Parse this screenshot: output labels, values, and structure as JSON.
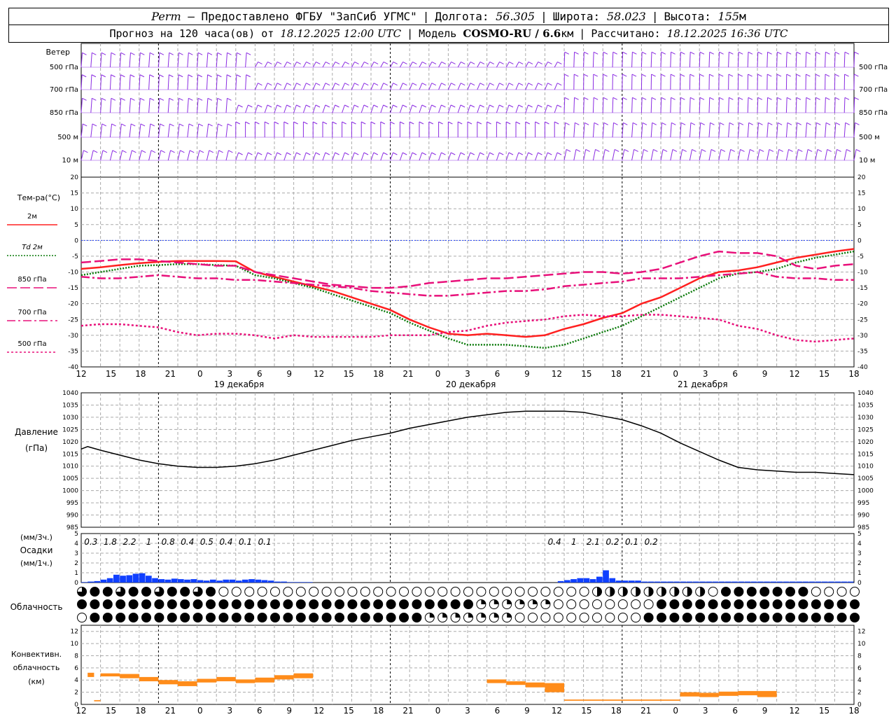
{
  "header": {
    "station": "Perm",
    "provider": "– Предоставлено ФГБУ \"ЗапСиб УГМС\"",
    "lon_label": "Долгота:",
    "lon_value": "56.305",
    "lat_label": "Широта:",
    "lat_value": "58.023",
    "alt_label": "Высота:",
    "alt_value": "155",
    "alt_unit": "м",
    "forecast_prefix": "Прогноз на 120 часа(ов) от",
    "forecast_start": "18.12.2025 12:00 UTC",
    "model_label": "Модель",
    "model_name": "COSMO-RU / 6.6",
    "model_unit": "км",
    "calc_label": "Рассчитано:",
    "calc_time": "18.12.2025 16:36 UTC"
  },
  "time_axis": {
    "hour_labels": [
      "12",
      "15",
      "18",
      "21",
      "0",
      "3",
      "6",
      "9",
      "12",
      "15",
      "18",
      "21",
      "0",
      "3",
      "6",
      "9",
      "12",
      "15",
      "18",
      "21",
      "0",
      "3",
      "6",
      "9",
      "12",
      "15",
      "18"
    ],
    "day_labels": [
      "19 декабря",
      "20 декабря",
      "21 декабря"
    ]
  },
  "wind_panel": {
    "title": "Ветер",
    "levels_left": [
      "500 гПа",
      "700 гПа",
      "850 гПа",
      "500 м",
      "10 м"
    ],
    "levels_right": [
      "500 гПа",
      "700 гПа",
      "850 гПа",
      "500 м",
      "10 м"
    ],
    "barb_color": "#8a2be2"
  },
  "temp_panel": {
    "title": "Тем-ра(°C)",
    "legend": [
      {
        "label": "2м",
        "color": "#ff2020",
        "style": "solid"
      },
      {
        "label": "Td  2м",
        "color": "#0a7a0a",
        "style": "dotted"
      },
      {
        "label": "850 гПа",
        "color": "#e8107a",
        "style": "longdash"
      },
      {
        "label": "700 гПа",
        "color": "#e8107a",
        "style": "dashdot"
      },
      {
        "label": "500 гПа",
        "color": "#e8107a",
        "style": "dot"
      }
    ],
    "y_ticks": [
      "20",
      "15",
      "10",
      "5",
      "0",
      "-5",
      "-10",
      "-15",
      "-20",
      "-25",
      "-30",
      "-35",
      "-40"
    ]
  },
  "pressure_panel": {
    "title": "Давление",
    "unit": "(гПа)",
    "y_ticks": [
      "1040",
      "1035",
      "1030",
      "1025",
      "1020",
      "1015",
      "1010",
      "1005",
      "1000",
      "995",
      "990",
      "985"
    ]
  },
  "precip_panel": {
    "unit_3h": "(мм/3ч.)",
    "title": "Осадки",
    "unit_1h": "(мм/1ч.)",
    "y_ticks": [
      "5",
      "4",
      "3",
      "2",
      "1",
      "0"
    ],
    "amounts_3h": [
      {
        "text": "0.3",
        "hour": 3
      },
      {
        "text": "1.8",
        "hour": 6
      },
      {
        "text": "2.2",
        "hour": 9
      },
      {
        "text": "1",
        "hour": 12
      },
      {
        "text": "0.8",
        "hour": 15
      },
      {
        "text": "0.4",
        "hour": 18
      },
      {
        "text": "0.5",
        "hour": 21
      },
      {
        "text": "0.4",
        "hour": 24
      },
      {
        "text": "0.1",
        "hour": 27
      },
      {
        "text": "0.1",
        "hour": 30
      },
      {
        "text": "0.4",
        "hour": 75
      },
      {
        "text": "1",
        "hour": 78
      },
      {
        "text": "2.1",
        "hour": 81
      },
      {
        "text": "0.2",
        "hour": 84
      },
      {
        "text": "0.1",
        "hour": 87
      },
      {
        "text": "0.2",
        "hour": 90
      }
    ],
    "bar_color": "#1040ff"
  },
  "cloud_panel": {
    "title": "Облачность"
  },
  "convective_panel": {
    "title_1": "Конвективн.",
    "title_2": "облачность",
    "unit": "(км)",
    "y_ticks": [
      "12",
      "10",
      "8",
      "6",
      "4",
      "2",
      "0"
    ],
    "bar_color": "#ff8c1a"
  },
  "chart_data": [
    {
      "type": "line",
      "title": "Тем-ра(°C)",
      "x_unit": "hours from 18.12.2025 12:00 UTC",
      "ylim": [
        -40,
        20
      ],
      "series": [
        {
          "name": "2м",
          "x": [
            0,
            3,
            6,
            9,
            12,
            15,
            18,
            21,
            24,
            27,
            30,
            33,
            36,
            39,
            42,
            45,
            48,
            51,
            54,
            57,
            60,
            63,
            66,
            69,
            72,
            75,
            78,
            81,
            84,
            87,
            90,
            93,
            96,
            99,
            102,
            105,
            108,
            111,
            114,
            117,
            120
          ],
          "values": [
            -9,
            -8.5,
            -7.8,
            -7.2,
            -6.8,
            -6.5,
            -6.5,
            -6.5,
            -6.6,
            -10,
            -11.5,
            -13,
            -14.5,
            -16,
            -18,
            -20,
            -22,
            -25,
            -27.5,
            -29.5,
            -30,
            -29.5,
            -30,
            -30.5,
            -30,
            -28,
            -26.5,
            -24.5,
            -23,
            -20,
            -18,
            -15,
            -12,
            -10,
            -9.5,
            -8.5,
            -7,
            -5.5,
            -4.5,
            -3.5,
            -2.7
          ]
        },
        {
          "name": "Td  2м",
          "x": [
            0,
            3,
            6,
            9,
            12,
            15,
            18,
            21,
            24,
            27,
            30,
            33,
            36,
            39,
            42,
            45,
            48,
            51,
            54,
            57,
            60,
            63,
            66,
            69,
            72,
            75,
            78,
            81,
            84,
            87,
            90,
            93,
            96,
            99,
            102,
            105,
            108,
            111,
            114,
            117,
            120
          ],
          "values": [
            -11,
            -10,
            -9,
            -8,
            -7.8,
            -7.5,
            -7.5,
            -7.8,
            -8,
            -11,
            -12,
            -13.5,
            -15,
            -17,
            -19,
            -21,
            -23,
            -26,
            -28.5,
            -31,
            -33,
            -33,
            -33,
            -33.5,
            -34,
            -33,
            -31,
            -29,
            -27,
            -24,
            -21,
            -18,
            -15,
            -12,
            -10.5,
            -10,
            -9,
            -7,
            -5.5,
            -4.5,
            -3.5
          ]
        },
        {
          "name": "850 гПа",
          "x": [
            0,
            3,
            6,
            9,
            12,
            15,
            18,
            21,
            24,
            27,
            30,
            33,
            36,
            39,
            42,
            45,
            48,
            51,
            54,
            57,
            60,
            63,
            66,
            69,
            72,
            75,
            78,
            81,
            84,
            87,
            90,
            93,
            96,
            99,
            102,
            105,
            108,
            111,
            114,
            117,
            120
          ],
          "values": [
            -7,
            -6.5,
            -6,
            -6,
            -6.5,
            -7,
            -7.5,
            -8,
            -8,
            -10,
            -11,
            -12,
            -13,
            -14,
            -14.5,
            -15,
            -15,
            -14.5,
            -13.5,
            -13,
            -12.5,
            -12,
            -12,
            -11.5,
            -11,
            -10.5,
            -10,
            -10,
            -10.5,
            -10,
            -9,
            -7,
            -5,
            -3.5,
            -4,
            -4,
            -5,
            -8,
            -9,
            -8,
            -7.5
          ]
        },
        {
          "name": "700 гПа",
          "x": [
            0,
            3,
            6,
            9,
            12,
            15,
            18,
            21,
            24,
            27,
            30,
            33,
            36,
            39,
            42,
            45,
            48,
            51,
            54,
            57,
            60,
            63,
            66,
            69,
            72,
            75,
            78,
            81,
            84,
            87,
            90,
            93,
            96,
            99,
            102,
            105,
            108,
            111,
            114,
            117,
            120
          ],
          "values": [
            -11.5,
            -12,
            -12,
            -11.5,
            -11,
            -11.5,
            -12,
            -12,
            -12.5,
            -12.5,
            -13,
            -13.5,
            -14,
            -14.5,
            -15,
            -16,
            -16.5,
            -17,
            -17.5,
            -17.5,
            -17,
            -16.5,
            -16,
            -16,
            -15.5,
            -14.5,
            -14,
            -13.5,
            -13,
            -12,
            -12,
            -12,
            -11.5,
            -11,
            -10.5,
            -10,
            -11.5,
            -12,
            -12,
            -12.5,
            -12.5
          ]
        },
        {
          "name": "500 гПа",
          "x": [
            0,
            3,
            6,
            9,
            12,
            15,
            18,
            21,
            24,
            27,
            30,
            33,
            36,
            39,
            42,
            45,
            48,
            51,
            54,
            57,
            60,
            63,
            66,
            69,
            72,
            75,
            78,
            81,
            84,
            87,
            90,
            93,
            96,
            99,
            102,
            105,
            108,
            111,
            114,
            117,
            120
          ],
          "values": [
            -27,
            -26.5,
            -26.5,
            -27,
            -27.5,
            -29,
            -30,
            -29.5,
            -29.5,
            -30,
            -31,
            -30,
            -30.5,
            -30.5,
            -30.5,
            -30.5,
            -30,
            -30,
            -30,
            -29,
            -28.5,
            -27,
            -26,
            -25.5,
            -25,
            -24,
            -23.5,
            -24,
            -24,
            -23.5,
            -23.5,
            -24,
            -24.5,
            -25,
            -27,
            -28,
            -30,
            -31.5,
            -32,
            -31.5,
            -31
          ]
        }
      ]
    },
    {
      "type": "line",
      "title": "Давление",
      "ylabel": "(гПа)",
      "x_unit": "hours from 18.12.2025 12:00 UTC",
      "ylim": [
        985,
        1040
      ],
      "series": [
        {
          "x": [
            0,
            1,
            3,
            6,
            9,
            12,
            15,
            18,
            21,
            24,
            27,
            30,
            33,
            36,
            39,
            42,
            45,
            48,
            51,
            54,
            57,
            60,
            63,
            66,
            69,
            72,
            75,
            78,
            81,
            84,
            87,
            90,
            93,
            96,
            99,
            102,
            105,
            108,
            111,
            114,
            117,
            120
          ],
          "values": [
            1017,
            1018,
            1016.5,
            1014.5,
            1012.5,
            1011,
            1010,
            1009.5,
            1009.5,
            1010,
            1011,
            1012.5,
            1014.5,
            1016.5,
            1018.5,
            1020.5,
            1022,
            1023.5,
            1025.5,
            1027,
            1028.5,
            1030,
            1031,
            1032,
            1032.5,
            1032.5,
            1032.5,
            1032,
            1030.5,
            1029,
            1026.5,
            1023.5,
            1019.5,
            1016,
            1012.5,
            1009.5,
            1008.5,
            1008,
            1007.5,
            1007.5,
            1007,
            1006.5
          ]
        }
      ]
    },
    {
      "type": "bar",
      "title": "Осадки",
      "ylabel": "(мм/1ч.)",
      "x_unit": "hours from 18.12.2025 12:00 UTC",
      "ylim": [
        0,
        5
      ],
      "x": [
        1,
        2,
        3,
        4,
        5,
        6,
        7,
        8,
        9,
        10,
        11,
        12,
        13,
        14,
        15,
        16,
        17,
        18,
        19,
        20,
        21,
        22,
        23,
        24,
        25,
        26,
        27,
        28,
        29,
        30,
        31,
        32,
        33,
        34,
        35,
        36,
        75,
        76,
        77,
        78,
        79,
        80,
        81,
        82,
        83,
        84,
        85,
        86,
        87,
        88,
        89,
        90,
        91,
        92,
        93,
        94,
        95,
        96,
        97,
        98,
        99,
        100,
        101,
        102,
        103,
        104,
        105,
        106,
        107,
        108,
        109,
        110,
        111,
        112,
        113,
        114,
        115,
        116,
        117,
        118,
        119,
        120
      ],
      "values": [
        0.05,
        0.1,
        0.15,
        0.3,
        0.45,
        0.8,
        0.7,
        0.75,
        0.9,
        0.95,
        0.7,
        0.45,
        0.35,
        0.3,
        0.4,
        0.35,
        0.3,
        0.35,
        0.25,
        0.2,
        0.3,
        0.2,
        0.3,
        0.3,
        0.2,
        0.3,
        0.35,
        0.3,
        0.25,
        0.2,
        0.1,
        0.1,
        0.05,
        0.05,
        0.05,
        0.05,
        0.15,
        0.25,
        0.35,
        0.45,
        0.45,
        0.35,
        0.6,
        1.25,
        0.45,
        0.2,
        0.2,
        0.2,
        0.2,
        0.1,
        0.1,
        0.1,
        0.1,
        0.1,
        0.1,
        0.1,
        0.1,
        0.1,
        0.1,
        0.1,
        0.1,
        0.1,
        0.1,
        0.1,
        0.1,
        0.1,
        0.1,
        0.1,
        0.1,
        0.1,
        0.1,
        0.1,
        0.1,
        0.1,
        0.1,
        0.1,
        0.1,
        0.1,
        0.1,
        0.1,
        0.1,
        0.1
      ]
    },
    {
      "type": "bar",
      "title": "Конвективн. облачность",
      "ylabel": "(км)",
      "x_unit": "hours from 18.12.2025 12:00 UTC",
      "ylim": [
        0,
        13
      ],
      "segments": [
        {
          "start": 1,
          "end": 2,
          "bottom": 4.5,
          "top": 5.2
        },
        {
          "start": 2,
          "end": 3,
          "bottom": 0.5,
          "top": 0.7
        },
        {
          "start": 3,
          "end": 6,
          "bottom": 4.6,
          "top": 5.1
        },
        {
          "start": 6,
          "end": 9,
          "bottom": 4.3,
          "top": 5
        },
        {
          "start": 9,
          "end": 12,
          "bottom": 3.8,
          "top": 4.5
        },
        {
          "start": 12,
          "end": 15,
          "bottom": 3.3,
          "top": 4
        },
        {
          "start": 15,
          "end": 18,
          "bottom": 3,
          "top": 3.8
        },
        {
          "start": 18,
          "end": 21,
          "bottom": 3.6,
          "top": 4.2
        },
        {
          "start": 21,
          "end": 24,
          "bottom": 3.8,
          "top": 4.5
        },
        {
          "start": 24,
          "end": 27,
          "bottom": 3.5,
          "top": 4.1
        },
        {
          "start": 27,
          "end": 30,
          "bottom": 3.6,
          "top": 4.4
        },
        {
          "start": 30,
          "end": 33,
          "bottom": 4.1,
          "top": 4.8
        },
        {
          "start": 33,
          "end": 36,
          "bottom": 4.3,
          "top": 5.1
        },
        {
          "start": 63,
          "end": 66,
          "bottom": 3.5,
          "top": 4.1
        },
        {
          "start": 66,
          "end": 69,
          "bottom": 3.2,
          "top": 3.8
        },
        {
          "start": 69,
          "end": 72,
          "bottom": 2.8,
          "top": 3.6
        },
        {
          "start": 72,
          "end": 75,
          "bottom": 2,
          "top": 3.5
        },
        {
          "start": 75,
          "end": 93,
          "bottom": 0.6,
          "top": 0.8
        },
        {
          "start": 93,
          "end": 96,
          "bottom": 1.3,
          "top": 2
        },
        {
          "start": 96,
          "end": 99,
          "bottom": 1.2,
          "top": 1.9
        },
        {
          "start": 99,
          "end": 102,
          "bottom": 1.4,
          "top": 2.1
        },
        {
          "start": 102,
          "end": 105,
          "bottom": 1.5,
          "top": 2.2
        },
        {
          "start": 105,
          "end": 108,
          "bottom": 1.2,
          "top": 2.2
        }
      ]
    }
  ]
}
